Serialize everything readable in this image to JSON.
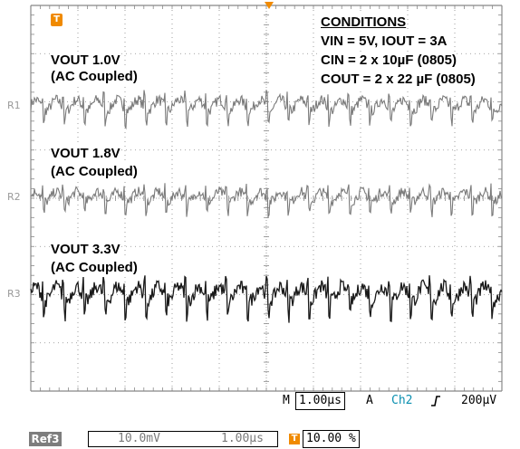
{
  "channels": [
    {
      "ref": "R1",
      "title": "VOUT 1.0V",
      "coupling": "(AC Coupled)",
      "color": "#7a7a7a"
    },
    {
      "ref": "R2",
      "title": "VOUT 1.8V",
      "coupling": "(AC Coupled)",
      "color": "#7a7a7a"
    },
    {
      "ref": "R3",
      "title": "VOUT 3.3V",
      "coupling": "(AC Coupled)",
      "color": "#1a1a1a"
    }
  ],
  "conditions": {
    "title": "CONDITIONS",
    "lines": [
      "VIN = 5V, IOUT = 3A",
      "CIN = 2 x 10µF (0805)",
      "COUT = 2 x 22 µF (0805)"
    ]
  },
  "trigger_marker": "T",
  "status_bar": {
    "m_label": "M",
    "timebase": "1.00µs",
    "a_label": "A",
    "trigger_source": "Ch2",
    "trigger_slope_icon": "rising-edge-icon",
    "trigger_level": "200µV"
  },
  "ref_bar": {
    "badge": "Ref3",
    "volts_per_div": "10.0mV",
    "time_per_div": "1.00µs",
    "trigger_position": "10.00 %"
  },
  "colors": {
    "trigger": "#f08a00",
    "trigger_source": "#0a8fb0",
    "grid": "#888888"
  }
}
